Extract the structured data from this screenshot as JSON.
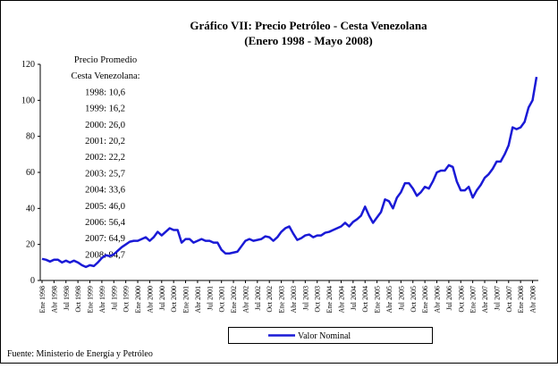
{
  "chart_data": {
    "type": "line",
    "title": "Gráfico VII: Precio Petróleo - Cesta Venezolana",
    "subtitle": "(Enero 1998 - Mayo 2008)",
    "annotation_lines": [
      "Precio Promedio",
      "Cesta Venezolana:",
      "1998: 10,6",
      "1999: 16,2",
      "2000: 26,0",
      "2001: 20,2",
      "2002: 22,2",
      "2003: 25,7",
      "2004: 33,6",
      "2005: 46,0",
      "2006: 56,4",
      "2007: 64,9",
      "2008: 94,7"
    ],
    "source": "Fuente: Ministerio de Energía y Petróleo",
    "categories": [
      "Ene 1998",
      null,
      null,
      "Abr 1998",
      null,
      null,
      "Jul 1998",
      null,
      null,
      "Oct 1998",
      null,
      null,
      "Ene 1999",
      null,
      null,
      "Abr 1999",
      null,
      null,
      "Jul 1999",
      null,
      null,
      "Oct 1999",
      null,
      null,
      "Ene 2000",
      null,
      null,
      "Abr 2000",
      null,
      null,
      "Jul 2000",
      null,
      null,
      "Oct 2000",
      null,
      null,
      "Ene 2001",
      null,
      null,
      "Abr 2001",
      null,
      null,
      "Jul 2001",
      null,
      null,
      "Oct 2001",
      null,
      null,
      "Ene 2002",
      null,
      null,
      "Abr 2002",
      null,
      null,
      "Jul 2002",
      null,
      null,
      "Oct 2002",
      null,
      null,
      "Ene 2003",
      null,
      null,
      "Abr 2003",
      null,
      null,
      "Jul 2003",
      null,
      null,
      "Oct 2003",
      null,
      null,
      "Ene 2004",
      null,
      null,
      "Abr 2004",
      null,
      null,
      "Jul 2004",
      null,
      null,
      "Oct 2004",
      null,
      null,
      "Ene 2005",
      null,
      null,
      "Abr 2005",
      null,
      null,
      "Jul 2005",
      null,
      null,
      "Oct 2005",
      null,
      null,
      "Ene 2006",
      null,
      null,
      "Abr 2006",
      null,
      null,
      "Jul 2006",
      null,
      null,
      "Oct 2006",
      null,
      null,
      "Ene 2007",
      null,
      null,
      "Abr 2007",
      null,
      null,
      "Jul 2007",
      null,
      null,
      "Oct 2007",
      null,
      null,
      "Ene 2008",
      null,
      null,
      "Abr 2008",
      null
    ],
    "series": [
      {
        "name": "Valor Nominal",
        "color": "#1a1ad6",
        "values": [
          12,
          11.5,
          10.5,
          11.5,
          11.5,
          10,
          11,
          10,
          11,
          10,
          8.5,
          7.5,
          8.5,
          8,
          10,
          12.5,
          14,
          13.5,
          14.5,
          16.5,
          18.5,
          20,
          21.5,
          22,
          22,
          23,
          24,
          22,
          24,
          27,
          25,
          27,
          29,
          28,
          28,
          21,
          23,
          23,
          21,
          22,
          23,
          22,
          22,
          21,
          21,
          17,
          15,
          15,
          15.5,
          16,
          19,
          22,
          23,
          22,
          22.5,
          23,
          24.5,
          24,
          22,
          24,
          27,
          29,
          30,
          26,
          22.5,
          23.5,
          25,
          25.5,
          24,
          25,
          25,
          26.5,
          27,
          28,
          29,
          30,
          32,
          30,
          32.5,
          34,
          36,
          41,
          36,
          32,
          35,
          38,
          45,
          44,
          40,
          46,
          49,
          54,
          54,
          51,
          47,
          49,
          52,
          51,
          55,
          60,
          61,
          61,
          64,
          63,
          55,
          50,
          50,
          52,
          46,
          50,
          53,
          57,
          59,
          62,
          66,
          66,
          70,
          75,
          85,
          84,
          85,
          88,
          96,
          100,
          113
        ]
      }
    ],
    "ylim": [
      0,
      120
    ],
    "yticks": [
      0,
      20,
      40,
      60,
      80,
      100,
      120
    ],
    "legend": "bottom",
    "grid": false
  }
}
